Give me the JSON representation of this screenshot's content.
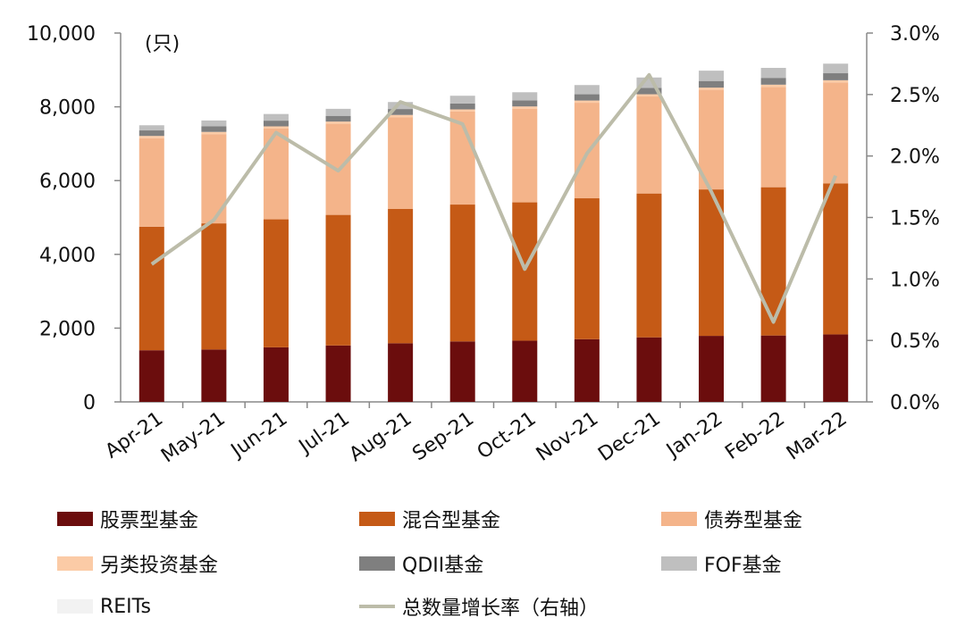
{
  "chart_data": {
    "type": "bar",
    "stacked": true,
    "unit_label": "(只)",
    "categories": [
      "Apr-21",
      "May-21",
      "Jun-21",
      "Jul-21",
      "Aug-21",
      "Sep-21",
      "Oct-21",
      "Nov-21",
      "Dec-21",
      "Jan-22",
      "Feb-22",
      "Mar-22"
    ],
    "ylim": [
      0,
      10000
    ],
    "yticks": [
      "0",
      "2,000",
      "4,000",
      "6,000",
      "8,000",
      "10,000"
    ],
    "y2lim": [
      0,
      3.0
    ],
    "y2ticks": [
      "0.0%",
      "0.5%",
      "1.0%",
      "1.5%",
      "2.0%",
      "2.5%",
      "3.0%"
    ],
    "series": [
      {
        "name": "股票型基金",
        "color": "#6b0d0d",
        "values": [
          1400,
          1420,
          1480,
          1530,
          1590,
          1640,
          1660,
          1700,
          1750,
          1790,
          1800,
          1830
        ]
      },
      {
        "name": "混合型基金",
        "color": "#c55a16",
        "values": [
          3350,
          3420,
          3470,
          3540,
          3640,
          3710,
          3750,
          3820,
          3900,
          3970,
          4020,
          4090
        ]
      },
      {
        "name": "债券型基金",
        "color": "#f4b48a",
        "values": [
          2400,
          2420,
          2460,
          2470,
          2490,
          2520,
          2540,
          2590,
          2630,
          2700,
          2720,
          2740
        ]
      },
      {
        "name": "另类投资基金",
        "color": "#fbcba6",
        "values": [
          60,
          60,
          60,
          60,
          60,
          60,
          60,
          60,
          60,
          60,
          60,
          60
        ]
      },
      {
        "name": "QDII基金",
        "color": "#7f7f7f",
        "values": [
          150,
          150,
          155,
          155,
          160,
          160,
          165,
          170,
          175,
          180,
          185,
          190
        ]
      },
      {
        "name": "FOF基金",
        "color": "#bfbfbf",
        "values": [
          140,
          160,
          180,
          190,
          190,
          210,
          220,
          250,
          280,
          280,
          270,
          260
        ]
      },
      {
        "name": "REITs",
        "color": "#f2f2f2",
        "values": [
          0,
          0,
          0,
          0,
          0,
          0,
          0,
          0,
          0,
          0,
          0,
          0
        ]
      }
    ],
    "line": {
      "name": "总数量增长率（右轴）",
      "color": "#bcbca9",
      "axis": "right",
      "values": [
        1.12,
        1.48,
        2.19,
        1.88,
        2.44,
        2.26,
        1.08,
        2.02,
        2.66,
        1.71,
        0.65,
        1.84
      ]
    },
    "legend_position": "bottom"
  }
}
